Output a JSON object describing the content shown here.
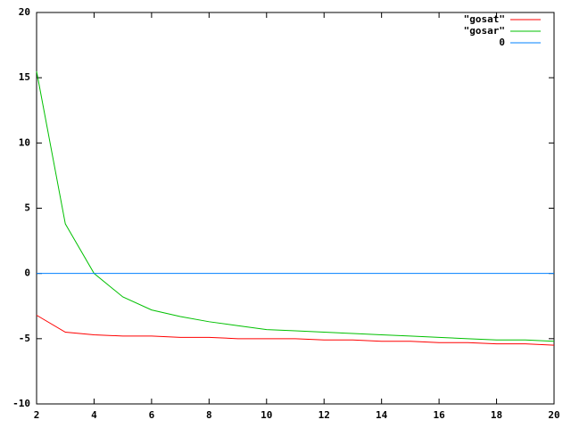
{
  "chart_data": {
    "type": "line",
    "xlim": [
      2,
      20
    ],
    "xticks": [
      2,
      4,
      6,
      8,
      10,
      12,
      14,
      16,
      18,
      20
    ],
    "ylim": [
      -10,
      20
    ],
    "yticks": [
      -10,
      -5,
      0,
      5,
      10,
      15,
      20
    ],
    "legend": "top-right",
    "series": [
      {
        "name": "\"gosat\"",
        "color": "#ff0000",
        "x": [
          2,
          3,
          4,
          5,
          6,
          7,
          8,
          9,
          10,
          11,
          12,
          13,
          14,
          15,
          16,
          17,
          18,
          19,
          20
        ],
        "values": [
          -3.2,
          -4.5,
          -4.7,
          -4.8,
          -4.8,
          -4.9,
          -4.9,
          -5.0,
          -5.0,
          -5.0,
          -5.1,
          -5.1,
          -5.2,
          -5.2,
          -5.3,
          -5.3,
          -5.4,
          -5.4,
          -5.5
        ]
      },
      {
        "name": "\"gosar\"",
        "color": "#00c000",
        "x": [
          2,
          3,
          4,
          5,
          6,
          7,
          8,
          9,
          10,
          11,
          12,
          13,
          14,
          15,
          16,
          17,
          18,
          19,
          20
        ],
        "values": [
          15.5,
          3.8,
          0.0,
          -1.8,
          -2.8,
          -3.3,
          -3.7,
          -4.0,
          -4.3,
          -4.4,
          -4.5,
          -4.6,
          -4.7,
          -4.8,
          -4.9,
          -5.0,
          -5.1,
          -5.1,
          -5.2
        ]
      },
      {
        "name": "0",
        "color": "#0080ff",
        "x": [
          2,
          20
        ],
        "values": [
          0,
          0
        ]
      }
    ]
  }
}
